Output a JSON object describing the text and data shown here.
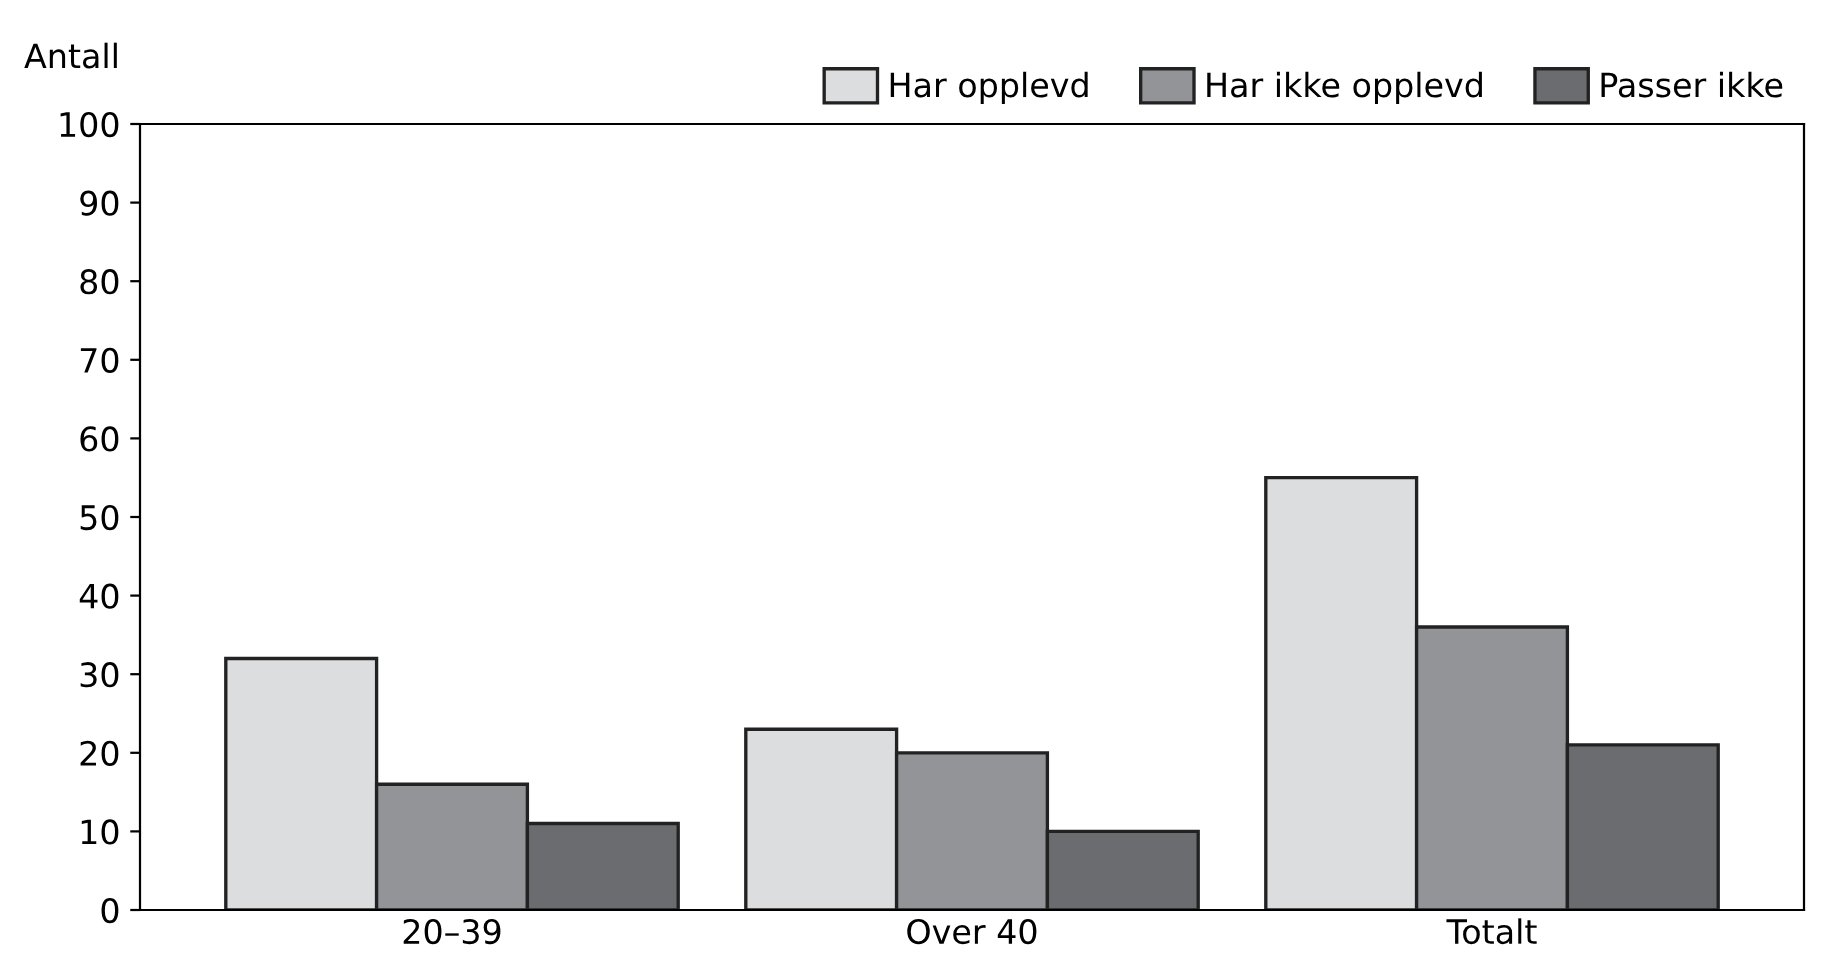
{
  "chart_data": {
    "type": "bar",
    "ylabel": "Antall",
    "categories": [
      "20–39",
      "Over 40",
      "Totalt"
    ],
    "series": [
      {
        "name": "Har opplevd",
        "color": "#dcdddf",
        "values": [
          32,
          23,
          55
        ]
      },
      {
        "name": "Har ikke opplevd",
        "color": "#939498",
        "values": [
          16,
          20,
          36
        ]
      },
      {
        "name": "Passer ikke",
        "color": "#6b6c70",
        "values": [
          11,
          10,
          21
        ]
      }
    ],
    "ylim": [
      0,
      100
    ],
    "yticks": [
      0,
      10,
      20,
      30,
      40,
      50,
      60,
      70,
      80,
      90,
      100
    ],
    "grid": false,
    "legend": "top right"
  }
}
